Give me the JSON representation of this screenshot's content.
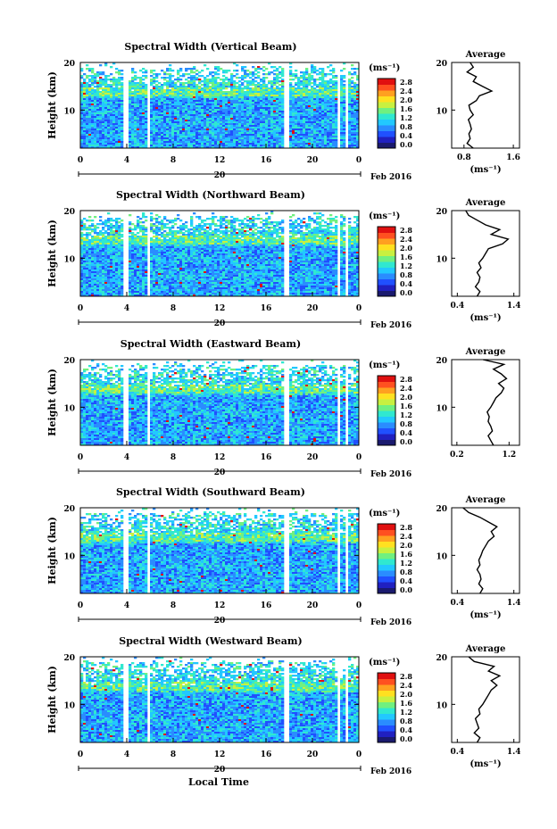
{
  "figure": {
    "footer_xlabel": "Local Time",
    "date_label": "Feb 2016",
    "day_label": "20"
  },
  "colorbar": {
    "unit": "(ms⁻¹)",
    "ticks": [
      "2.8",
      "2.4",
      "2.0",
      "1.6",
      "1.2",
      "0.8",
      "0.4",
      "0.0"
    ],
    "colors": [
      "#1a1a6e",
      "#2020c0",
      "#2050ff",
      "#2a8cff",
      "#22c8ff",
      "#30e8d0",
      "#70f080",
      "#c8f040",
      "#ffe020",
      "#ffa020",
      "#ff5020",
      "#e01010"
    ]
  },
  "chart_data": [
    {
      "type": "heatmap",
      "title": "Spectral Width (Vertical Beam)",
      "xlabel": "",
      "ylabel": "Height (km)",
      "x_ticks": [
        "0",
        "4",
        "8",
        "12",
        "16",
        "20",
        "0"
      ],
      "y_ticks": [
        "20",
        "10"
      ],
      "xlim": [
        0,
        24
      ],
      "ylim": [
        2,
        20
      ],
      "colorbar_range": [
        0.0,
        3.0
      ],
      "profile": {
        "title": "Average",
        "xlabel": "(ms⁻¹)",
        "x_ticks": [
          "0.8",
          "1.6"
        ],
        "xlim": [
          0.6,
          1.7
        ],
        "y_ticks": [
          "20",
          "10"
        ],
        "heights": [
          2,
          3,
          4,
          5,
          6,
          7,
          8,
          9,
          10,
          11,
          12,
          13,
          14,
          15,
          16,
          17,
          18,
          19,
          20
        ],
        "values": [
          0.95,
          0.85,
          0.9,
          0.88,
          0.92,
          0.9,
          0.87,
          0.95,
          0.9,
          0.88,
          1.0,
          1.05,
          1.25,
          1.1,
          0.95,
          1.0,
          0.85,
          0.95,
          0.9
        ]
      }
    },
    {
      "type": "heatmap",
      "title": "Spectral Width (Northward Beam)",
      "xlabel": "",
      "ylabel": "Height (km)",
      "x_ticks": [
        "0",
        "4",
        "8",
        "12",
        "16",
        "20",
        "0"
      ],
      "y_ticks": [
        "20",
        "10"
      ],
      "xlim": [
        0,
        24
      ],
      "ylim": [
        2,
        20
      ],
      "colorbar_range": [
        0.0,
        3.0
      ],
      "profile": {
        "title": "Average",
        "xlabel": "(ms⁻¹)",
        "x_ticks": [
          "0.4",
          "1.4"
        ],
        "xlim": [
          0.3,
          1.5
        ],
        "y_ticks": [
          "20",
          "10"
        ],
        "heights": [
          2,
          3,
          4,
          5,
          6,
          7,
          8,
          9,
          10,
          11,
          12,
          13,
          14,
          15,
          16,
          17,
          18,
          19,
          20
        ],
        "values": [
          0.75,
          0.8,
          0.72,
          0.78,
          0.8,
          0.75,
          0.82,
          0.78,
          0.85,
          0.9,
          0.95,
          1.2,
          1.3,
          1.0,
          1.15,
          0.9,
          0.75,
          0.6,
          0.55
        ]
      }
    },
    {
      "type": "heatmap",
      "title": "Spectral Width (Eastward Beam)",
      "xlabel": "",
      "ylabel": "Height (km)",
      "x_ticks": [
        "0",
        "4",
        "8",
        "12",
        "16",
        "20",
        "0"
      ],
      "y_ticks": [
        "20",
        "10"
      ],
      "xlim": [
        0,
        24
      ],
      "ylim": [
        2,
        20
      ],
      "colorbar_range": [
        0.0,
        3.0
      ],
      "profile": {
        "title": "Average",
        "xlabel": "",
        "x_ticks": [
          "0.2",
          "1.2"
        ],
        "xlim": [
          0.1,
          1.4
        ],
        "y_ticks": [
          "20",
          "10"
        ],
        "heights": [
          2,
          3,
          4,
          5,
          6,
          7,
          8,
          9,
          10,
          11,
          12,
          13,
          14,
          15,
          16,
          17,
          18,
          19,
          20
        ],
        "values": [
          0.9,
          0.85,
          0.8,
          0.88,
          0.85,
          0.8,
          0.82,
          0.78,
          0.85,
          0.9,
          0.95,
          1.05,
          1.1,
          1.0,
          1.15,
          1.05,
          0.9,
          1.1,
          0.7
        ]
      }
    },
    {
      "type": "heatmap",
      "title": "Spectral Width (Southward Beam)",
      "xlabel": "",
      "ylabel": "Height (km)",
      "x_ticks": [
        "0",
        "4",
        "8",
        "12",
        "16",
        "20",
        "0"
      ],
      "y_ticks": [
        "20",
        "10"
      ],
      "xlim": [
        0,
        24
      ],
      "ylim": [
        2,
        20
      ],
      "colorbar_range": [
        0.0,
        3.0
      ],
      "profile": {
        "title": "Average",
        "xlabel": "(ms⁻¹)",
        "x_ticks": [
          "0.4",
          "1.4"
        ],
        "xlim": [
          0.3,
          1.5
        ],
        "y_ticks": [
          "20",
          "10"
        ],
        "heights": [
          2,
          3,
          4,
          5,
          6,
          7,
          8,
          9,
          10,
          11,
          12,
          13,
          14,
          15,
          16,
          17,
          18,
          19,
          20
        ],
        "values": [
          0.8,
          0.85,
          0.78,
          0.82,
          0.8,
          0.75,
          0.8,
          0.78,
          0.82,
          0.85,
          0.9,
          0.95,
          1.05,
          1.0,
          1.1,
          0.95,
          0.8,
          0.6,
          0.5
        ]
      }
    },
    {
      "type": "heatmap",
      "title": "Spectral Width (Westward Beam)",
      "xlabel": "Local Time",
      "ylabel": "Height (km)",
      "x_ticks": [
        "0",
        "4",
        "8",
        "12",
        "16",
        "20",
        "0"
      ],
      "y_ticks": [
        "20",
        "10"
      ],
      "xlim": [
        0,
        24
      ],
      "ylim": [
        2,
        20
      ],
      "colorbar_range": [
        0.0,
        3.0
      ],
      "profile": {
        "title": "Average",
        "xlabel": "(ms⁻¹)",
        "x_ticks": [
          "0.4",
          "1.4"
        ],
        "xlim": [
          0.3,
          1.5
        ],
        "y_ticks": [
          "20",
          "10"
        ],
        "heights": [
          2,
          3,
          4,
          5,
          6,
          7,
          8,
          9,
          10,
          11,
          12,
          13,
          14,
          15,
          16,
          17,
          18,
          19,
          20
        ],
        "values": [
          0.75,
          0.8,
          0.7,
          0.78,
          0.75,
          0.72,
          0.8,
          0.78,
          0.85,
          0.9,
          0.95,
          1.0,
          1.1,
          1.0,
          1.15,
          0.95,
          1.05,
          0.7,
          0.6
        ]
      }
    }
  ]
}
